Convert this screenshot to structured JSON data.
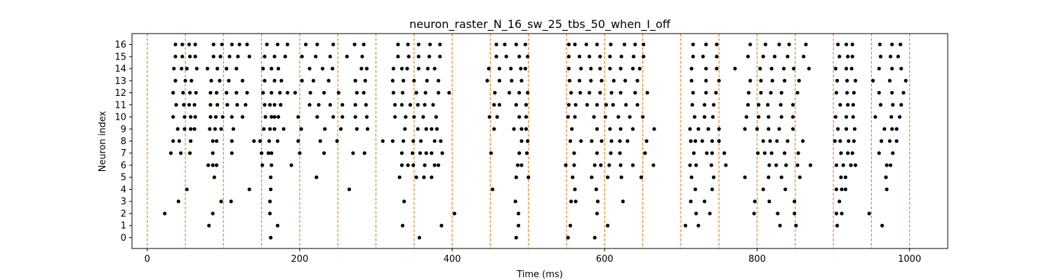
{
  "chart_data": {
    "type": "scatter",
    "title": "neuron_raster_N_16_sw_25_tbs_50_when_I_off",
    "xlabel": "Time (ms)",
    "ylabel": "Neuron index",
    "xlim": [
      -20,
      1050
    ],
    "ylim": [
      -0.9,
      16.9
    ],
    "x_ticks": [
      0,
      200,
      400,
      600,
      800,
      1000
    ],
    "x_tick_labels": [
      "0",
      "200",
      "400",
      "600",
      "800",
      "1000"
    ],
    "y_ticks": [
      0,
      1,
      2,
      3,
      4,
      5,
      6,
      7,
      8,
      9,
      10,
      11,
      12,
      13,
      14,
      15,
      16
    ],
    "y_tick_labels": [
      "0",
      "1",
      "2",
      "3",
      "4",
      "5",
      "6",
      "7",
      "8",
      "9",
      "10",
      "11",
      "12",
      "13",
      "14",
      "15",
      "16"
    ],
    "grid": false,
    "marker_color": "#000000",
    "vline_color": "#ff7f0e",
    "vlines": [
      0,
      50,
      100,
      150,
      200,
      250,
      300,
      350,
      400,
      450,
      500,
      550,
      600,
      650,
      700,
      750,
      800,
      850,
      900,
      950,
      1000
    ],
    "spikes": [
      {
        "neuron": 0,
        "t": [
          162,
          357,
          484,
          552,
          587
        ]
      },
      {
        "neuron": 1,
        "t": [
          81,
          171,
          335,
          386,
          487,
          555,
          604,
          706,
          723,
          830,
          851,
          905,
          964
        ]
      },
      {
        "neuron": 2,
        "t": [
          23,
          86,
          161,
          403,
          487,
          590,
          720,
          738,
          796,
          827,
          849,
          904,
          911,
          947
        ]
      },
      {
        "neuron": 3,
        "t": [
          41,
          97,
          110,
          161,
          337,
          483,
          556,
          562,
          591,
          624,
          713,
          731,
          797,
          816,
          849,
          908
        ]
      },
      {
        "neuron": 4,
        "t": [
          52,
          134,
          162,
          265,
          453,
          561,
          589,
          719,
          741,
          808,
          837,
          904,
          911,
          916,
          970
        ]
      },
      {
        "neuron": 5,
        "t": [
          88,
          162,
          222,
          331,
          353,
          363,
          373,
          484,
          500,
          558,
          583,
          604,
          622,
          648,
          714,
          743,
          784,
          815,
          832,
          856,
          910,
          916,
          969
        ]
      },
      {
        "neuron": 6,
        "t": [
          80,
          86,
          91,
          151,
          163,
          189,
          334,
          342,
          349,
          364,
          377,
          382,
          486,
          491,
          549,
          560,
          587,
          595,
          606,
          621,
          637,
          664,
          712,
          720,
          740,
          759,
          816,
          825,
          838,
          853,
          870,
          904,
          913,
          923,
          929,
          970,
          975
        ]
      },
      {
        "neuron": 7,
        "t": [
          31,
          44,
          56,
          86,
          111,
          150,
          159,
          163,
          200,
          232,
          270,
          285,
          334,
          348,
          358,
          366,
          373,
          387,
          451,
          488,
          498,
          560,
          590,
          608,
          620,
          653,
          717,
          734,
          741,
          757,
          801,
          810,
          819,
          836,
          854,
          910,
          919,
          925,
          960,
          978
        ]
      },
      {
        "neuron": 8,
        "t": [
          34,
          42,
          57,
          86,
          91,
          111,
          140,
          148,
          160,
          171,
          198,
          227,
          249,
          309,
          322,
          336,
          349,
          359,
          377,
          385,
          491,
          499,
          555,
          569,
          583,
          596,
          609,
          620,
          630,
          655,
          713,
          719,
          728,
          741,
          750,
          808,
          817,
          826,
          840,
          860,
          902,
          909,
          920,
          927,
          963,
          974,
          983
        ]
      },
      {
        "neuron": 9,
        "t": [
          40,
          49,
          57,
          62,
          82,
          89,
          97,
          113,
          153,
          161,
          167,
          179,
          202,
          233,
          254,
          275,
          289,
          338,
          355,
          366,
          373,
          380,
          455,
          481,
          491,
          497,
          557,
          590,
          607,
          621,
          637,
          665,
          712,
          723,
          736,
          750,
          784,
          800,
          815,
          829,
          847,
          906,
          917,
          928,
          967,
          977,
          983
        ]
      },
      {
        "neuron": 10,
        "t": [
          34,
          49,
          57,
          63,
          83,
          90,
          99,
          111,
          125,
          155,
          163,
          167,
          172,
          198,
          223,
          244,
          256,
          273,
          288,
          325,
          339,
          350,
          362,
          379,
          449,
          459,
          488,
          497,
          552,
          561,
          586,
          601,
          618,
          633,
          650,
          718,
          731,
          742,
          786,
          802,
          815,
          832,
          847,
          903,
          917,
          926,
          955,
          976,
          987
        ]
      },
      {
        "neuron": 11,
        "t": [
          38,
          48,
          55,
          62,
          83,
          92,
          105,
          118,
          129,
          154,
          161,
          167,
          175,
          213,
          225,
          240,
          256,
          273,
          287,
          325,
          334,
          345,
          355,
          364,
          375,
          455,
          462,
          484,
          497,
          553,
          562,
          577,
          590,
          602,
          611,
          628,
          643,
          715,
          731,
          743,
          788,
          802,
          814,
          831,
          847,
          909,
          919,
          926,
          962,
          978,
          989
        ]
      },
      {
        "neuron": 12,
        "t": [
          34,
          47,
          56,
          64,
          83,
          91,
          104,
          117,
          131,
          152,
          163,
          174,
          184,
          194,
          214,
          232,
          251,
          275,
          284,
          323,
          335,
          353,
          365,
          382,
          396,
          456,
          475,
          488,
          499,
          556,
          568,
          580,
          594,
          609,
          621,
          640,
          656,
          716,
          733,
          746,
          789,
          805,
          818,
          832,
          853,
          904,
          918,
          927,
          960,
          977,
          992
        ]
      },
      {
        "neuron": 13,
        "t": [
          37,
          50,
          58,
          84,
          95,
          107,
          125,
          154,
          167,
          176,
          203,
          218,
          238,
          273,
          286,
          322,
          336,
          350,
          367,
          382,
          446,
          462,
          478,
          491,
          554,
          567,
          582,
          596,
          612,
          627,
          643,
          714,
          733,
          750,
          791,
          805,
          820,
          836,
          855,
          905,
          918,
          929,
          952,
          974,
          995
        ]
      },
      {
        "neuron": 14,
        "t": [
          35,
          45,
          52,
          65,
          79,
          92,
          104,
          117,
          152,
          163,
          172,
          213,
          230,
          243,
          281,
          288,
          323,
          334,
          341,
          356,
          368,
          377,
          448,
          462,
          477,
          490,
          496,
          553,
          569,
          582,
          594,
          607,
          621,
          637,
          646,
          714,
          733,
          747,
          771,
          804,
          819,
          835,
          848,
          868,
          903,
          917,
          924,
          960,
          977,
          989
        ]
      },
      {
        "neuron": 15,
        "t": [
          37,
          46,
          56,
          63,
          87,
          96,
          108,
          119,
          134,
          154,
          167,
          181,
          203,
          221,
          240,
          262,
          282,
          329,
          343,
          356,
          370,
          384,
          458,
          471,
          488,
          499,
          553,
          567,
          580,
          594,
          607,
          622,
          638,
          651,
          716,
          729,
          747,
          788,
          808,
          823,
          840,
          861,
          908,
          919,
          925,
          962,
          975,
          985
        ]
      },
      {
        "neuron": 16,
        "t": [
          37,
          46,
          55,
          63,
          87,
          98,
          111,
          121,
          131,
          157,
          171,
          184,
          208,
          223,
          244,
          272,
          284,
          329,
          342,
          356,
          371,
          384,
          458,
          469,
          484,
          496,
          553,
          561,
          576,
          590,
          608,
          626,
          640,
          651,
          716,
          733,
          747,
          791,
          811,
          829,
          842,
          864,
          906,
          917,
          925,
          961,
          977,
          988
        ]
      }
    ]
  }
}
